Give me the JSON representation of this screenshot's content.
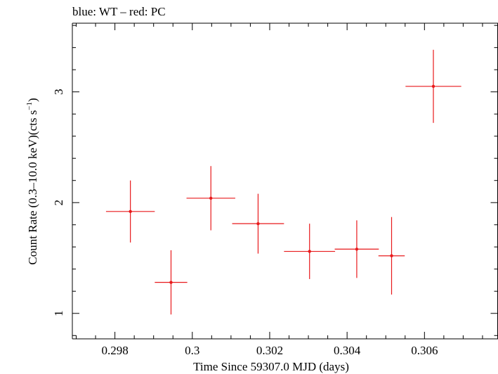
{
  "chart_data": {
    "type": "scatter",
    "title": "blue: WT – red: PC",
    "xlabel": "Time Since 59307.0 MJD (days)",
    "ylabel_main": "Count Rate (0.3–10.0 keV)(cts s",
    "ylabel_sup": "−1",
    "ylabel_close": ")",
    "xlim": [
      0.2969,
      0.3079
    ],
    "ylim": [
      0.77,
      3.62
    ],
    "xticks_major": [
      0.298,
      0.3,
      0.302,
      0.304,
      0.306
    ],
    "xtick_labels": [
      "0.298",
      "0.3",
      "0.302",
      "0.304",
      "0.306"
    ],
    "yticks_major": [
      1,
      2,
      3
    ],
    "ytick_labels": [
      "1",
      "2",
      "3"
    ],
    "grid": false,
    "series": [
      {
        "color": "#e8191b",
        "points": [
          {
            "x": 0.2984,
            "xerr": 0.00063,
            "y": 1.92,
            "yerr": 0.28
          },
          {
            "x": 0.29945,
            "xerr": 0.00042,
            "y": 1.28,
            "yerr": 0.29
          },
          {
            "x": 0.30048,
            "xerr": 0.00063,
            "y": 2.04,
            "yerr": 0.29
          },
          {
            "x": 0.3017,
            "xerr": 0.00067,
            "y": 1.81,
            "yerr": 0.27
          },
          {
            "x": 0.30303,
            "xerr": 0.00066,
            "y": 1.56,
            "yerr": 0.25
          },
          {
            "x": 0.30425,
            "xerr": 0.00057,
            "y": 1.58,
            "yerr": 0.26
          },
          {
            "x": 0.30515,
            "xerr": 0.00034,
            "y": 1.52,
            "yerr": 0.35
          },
          {
            "x": 0.30623,
            "xerr": 0.00072,
            "y": 3.05,
            "yerr": 0.33
          }
        ]
      }
    ]
  }
}
